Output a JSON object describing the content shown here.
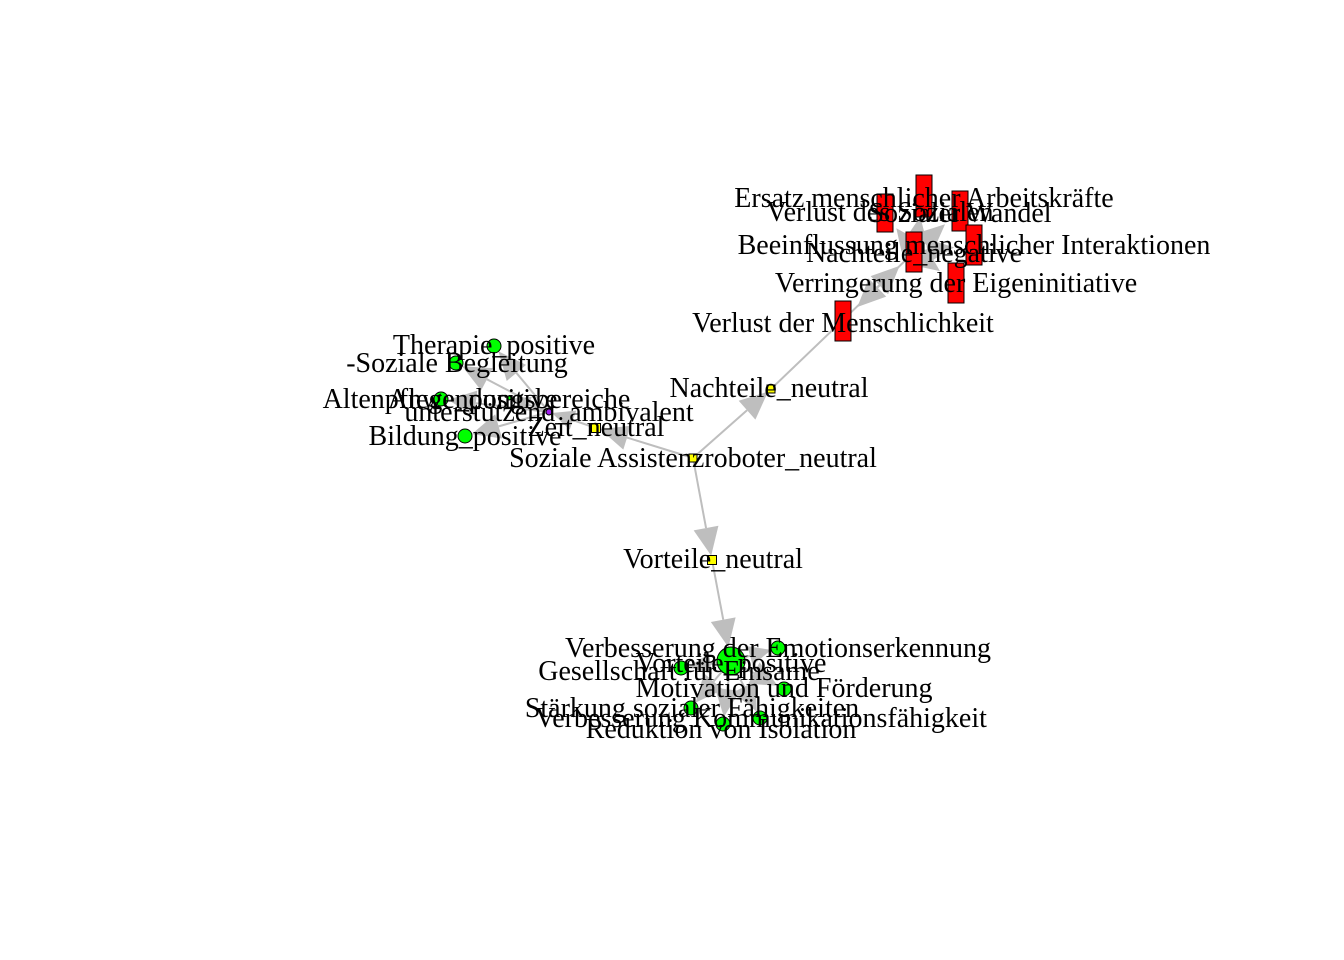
{
  "diagram": {
    "type": "network",
    "edge_color": "#BEBEBE",
    "node_border_color": "#000000",
    "nodes": [
      {
        "id": "sar",
        "label": "Soziale Assistenzroboter_neutral",
        "shape": "square",
        "color": "#FFFF00"
      },
      {
        "id": "vorteile_n",
        "label": "Vorteile_neutral",
        "shape": "square",
        "color": "#FFFF00"
      },
      {
        "id": "nachteile_n",
        "label": "Nachteile_neutral",
        "shape": "square",
        "color": "#FFFF00"
      },
      {
        "id": "zeit",
        "label": "Zeit_neutral",
        "shape": "square",
        "color": "#FFFF00"
      },
      {
        "id": "unterstuetzend",
        "label": "unterstützend_ambivalent",
        "shape": "circle",
        "color": "#A020F0"
      },
      {
        "id": "therapie",
        "label": "Therapie_positive",
        "shape": "circle",
        "color": "#00FF00"
      },
      {
        "id": "begleitung",
        "label": "-Soziale Begleitung",
        "shape": "circle",
        "color": "#00FF00"
      },
      {
        "id": "alten",
        "label": "Altenpflege_positive",
        "shape": "circle",
        "color": "#00FF00"
      },
      {
        "id": "anwendung",
        "label": "Anwendungsbereiche",
        "shape": "circle",
        "color": "#00FF00"
      },
      {
        "id": "bildung",
        "label": "Bildung_positive",
        "shape": "circle",
        "color": "#00FF00"
      },
      {
        "id": "vorteile_p",
        "label": "Vorteile_positive",
        "shape": "circle",
        "color": "#00FF00"
      },
      {
        "id": "emotion",
        "label": "Verbesserung der Emotionserkennung",
        "shape": "circle",
        "color": "#00FF00"
      },
      {
        "id": "gesellschaft",
        "label": "Gesellschaft für Einsame",
        "shape": "circle",
        "color": "#00FF00"
      },
      {
        "id": "motivation",
        "label": "Motivation und Förderung",
        "shape": "circle",
        "color": "#00FF00"
      },
      {
        "id": "staerkung",
        "label": "Stärkung sozialer Fähigkeiten",
        "shape": "circle",
        "color": "#00FF00"
      },
      {
        "id": "kommunikation",
        "label": "Verbesserung Kommunikationsfähigkeit",
        "shape": "circle",
        "color": "#00FF00"
      },
      {
        "id": "isolation",
        "label": "Reduktion von Isolation",
        "shape": "circle",
        "color": "#00FF00"
      },
      {
        "id": "nachteile_neg",
        "label": "Nachteile_negative",
        "shape": "rectangle",
        "color": "#FF0000"
      },
      {
        "id": "ersatz",
        "label": "Ersatz menschlicher Arbeitskräfte",
        "shape": "rectangle",
        "color": "#FF0000"
      },
      {
        "id": "sozial_wandel",
        "label": "Sozialer Wandel",
        "shape": "rectangle",
        "color": "#FF0000"
      },
      {
        "id": "verlust_soz",
        "label": "Verlust des Sozialen",
        "shape": "rectangle",
        "color": "#FF0000"
      },
      {
        "id": "beeinflussung",
        "label": "Beeinflussung menschlicher Interaktionen",
        "shape": "rectangle",
        "color": "#FF0000"
      },
      {
        "id": "eigeninitiative",
        "label": "Verringerung der Eigeninitiative",
        "shape": "rectangle",
        "color": "#FF0000"
      },
      {
        "id": "menschlichkeit",
        "label": "Verlust der Menschlichkeit",
        "shape": "rectangle",
        "color": "#FF0000"
      }
    ],
    "edges": [
      {
        "from": "sar",
        "to": "vorteile_n"
      },
      {
        "from": "sar",
        "to": "nachteile_n"
      },
      {
        "from": "sar",
        "to": "zeit"
      },
      {
        "from": "nachteile_n",
        "to": "nachteile_neg"
      },
      {
        "from": "vorteile_n",
        "to": "vorteile_p"
      },
      {
        "from": "zeit",
        "to": "unterstuetzend"
      },
      {
        "from": "unterstuetzend",
        "to": "therapie"
      },
      {
        "from": "unterstuetzend",
        "to": "begleitung"
      },
      {
        "from": "unterstuetzend",
        "to": "alten"
      },
      {
        "from": "unterstuetzend",
        "to": "anwendung"
      },
      {
        "from": "unterstuetzend",
        "to": "bildung"
      },
      {
        "from": "vorteile_p",
        "to": "emotion"
      },
      {
        "from": "vorteile_p",
        "to": "gesellschaft"
      },
      {
        "from": "vorteile_p",
        "to": "motivation"
      },
      {
        "from": "vorteile_p",
        "to": "staerkung"
      },
      {
        "from": "vorteile_p",
        "to": "kommunikation"
      },
      {
        "from": "vorteile_p",
        "to": "isolation"
      },
      {
        "from": "nachteile_neg",
        "to": "ersatz"
      },
      {
        "from": "nachteile_neg",
        "to": "sozial_wandel"
      },
      {
        "from": "nachteile_neg",
        "to": "verlust_soz"
      },
      {
        "from": "nachteile_neg",
        "to": "beeinflussung"
      },
      {
        "from": "nachteile_neg",
        "to": "eigeninitiative"
      },
      {
        "from": "nachteile_neg",
        "to": "menschlichkeit"
      }
    ]
  }
}
